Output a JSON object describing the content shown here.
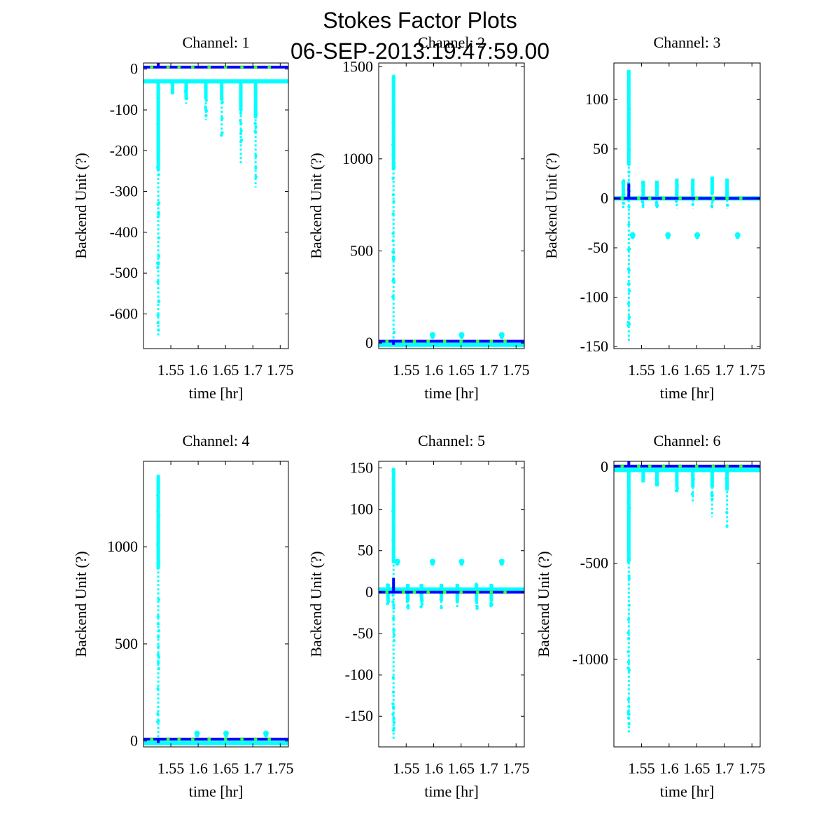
{
  "figure": {
    "title": "Stokes Factor Plots",
    "timestamp": "06-SEP-2013:19:47:59.00"
  },
  "colors": {
    "scatter": "#00ffff",
    "mean_line": "#0000ff",
    "markers": "#33ff33",
    "frame": "#000000"
  },
  "chart_data": [
    {
      "type": "scatter",
      "title": "Channel: 1",
      "xlabel": "time [hr]",
      "ylabel": "Backend Unit (?)",
      "xlim": [
        1.5,
        1.765
      ],
      "ylim": [
        -685,
        15
      ],
      "xticks": [
        1.55,
        1.6,
        1.65,
        1.7,
        1.75
      ],
      "xticklabels": [
        "1.55",
        "1.6",
        "1.65",
        "1.7",
        "1.75"
      ],
      "yticks": [
        0,
        -100,
        -200,
        -300,
        -400,
        -500,
        -600
      ],
      "yticklabels": [
        "0",
        "-100",
        "-200",
        "-300",
        "-400",
        "-500",
        "-600"
      ],
      "baseline": -30,
      "line_level": 5,
      "spike": {
        "x": 1.527,
        "value": 15
      },
      "bursts": [
        {
          "x": 1.527,
          "min": -655,
          "max": -30
        },
        {
          "x": 1.553,
          "min": -60,
          "max": -30
        },
        {
          "x": 1.578,
          "min": -85,
          "max": -30
        },
        {
          "x": 1.614,
          "min": -125,
          "max": -30
        },
        {
          "x": 1.643,
          "min": -165,
          "max": -30
        },
        {
          "x": 1.678,
          "min": -235,
          "max": -30
        },
        {
          "x": 1.705,
          "min": -290,
          "max": -30
        }
      ],
      "clusters": [],
      "markers_x": [
        1.515,
        1.545,
        1.565,
        1.59,
        1.62,
        1.65,
        1.68,
        1.705,
        1.73
      ]
    },
    {
      "type": "scatter",
      "title": "Channel: 2",
      "xlabel": "time [hr]",
      "ylabel": "Backend Unit (?)",
      "xlim": [
        1.5,
        1.765
      ],
      "ylim": [
        -30,
        1520
      ],
      "xticks": [
        1.55,
        1.6,
        1.65,
        1.7,
        1.75
      ],
      "xticklabels": [
        "1.55",
        "1.6",
        "1.65",
        "1.7",
        "1.75"
      ],
      "yticks": [
        0,
        500,
        1000,
        1500
      ],
      "yticklabels": [
        "0",
        "500",
        "1000",
        "1500"
      ],
      "baseline": -10,
      "line_level": 10,
      "spike": {
        "x": 1.527,
        "value": -10
      },
      "bursts": [
        {
          "x": 1.527,
          "min": -10,
          "max": 1450
        }
      ],
      "clusters": [
        {
          "x": 1.598,
          "value": 45
        },
        {
          "x": 1.651,
          "value": 45
        },
        {
          "x": 1.724,
          "value": 45
        }
      ],
      "markers_x": [
        1.515,
        1.545,
        1.565,
        1.59,
        1.62,
        1.65,
        1.68,
        1.705,
        1.73
      ]
    },
    {
      "type": "scatter",
      "title": "Channel: 3",
      "xlabel": "time [hr]",
      "ylabel": "Backend Unit (?)",
      "xlim": [
        1.5,
        1.765
      ],
      "ylim": [
        -152,
        137
      ],
      "xticks": [
        1.55,
        1.6,
        1.65,
        1.7,
        1.75
      ],
      "xticklabels": [
        "1.55",
        "1.6",
        "1.65",
        "1.7",
        "1.75"
      ],
      "yticks": [
        100,
        50,
        0,
        -50,
        -100,
        -150
      ],
      "yticklabels": [
        "100",
        "50",
        "0",
        "-50",
        "-100",
        "-150"
      ],
      "baseline": 0,
      "line_level": 0,
      "spike": {
        "x": 1.527,
        "value": 15
      },
      "bursts": [
        {
          "x": 1.527,
          "min": -145,
          "max": 130
        },
        {
          "x": 1.517,
          "min": -10,
          "max": 18
        },
        {
          "x": 1.553,
          "min": -10,
          "max": 18
        },
        {
          "x": 1.578,
          "min": -10,
          "max": 18
        },
        {
          "x": 1.614,
          "min": -10,
          "max": 20
        },
        {
          "x": 1.643,
          "min": -10,
          "max": 20
        },
        {
          "x": 1.678,
          "min": -10,
          "max": 22
        },
        {
          "x": 1.705,
          "min": -10,
          "max": 20
        }
      ],
      "clusters": [
        {
          "x": 1.534,
          "value": -37
        },
        {
          "x": 1.598,
          "value": -37
        },
        {
          "x": 1.651,
          "value": -37
        },
        {
          "x": 1.724,
          "value": -37
        }
      ],
      "markers_x": [
        1.515,
        1.545,
        1.565,
        1.59,
        1.62,
        1.65,
        1.68,
        1.705,
        1.73
      ]
    },
    {
      "type": "scatter",
      "title": "Channel: 4",
      "xlabel": "time [hr]",
      "ylabel": "Backend Unit (?)",
      "xlim": [
        1.5,
        1.765
      ],
      "ylim": [
        -30,
        1440
      ],
      "xticks": [
        1.55,
        1.6,
        1.65,
        1.7,
        1.75
      ],
      "xticklabels": [
        "1.55",
        "1.6",
        "1.65",
        "1.7",
        "1.75"
      ],
      "yticks": [
        0,
        500,
        1000
      ],
      "yticklabels": [
        "0",
        "500",
        "1000"
      ],
      "baseline": -10,
      "line_level": 10,
      "spike": {
        "x": 1.527,
        "value": -10
      },
      "bursts": [
        {
          "x": 1.527,
          "min": -10,
          "max": 1370
        }
      ],
      "clusters": [
        {
          "x": 1.598,
          "value": 40
        },
        {
          "x": 1.651,
          "value": 40
        },
        {
          "x": 1.724,
          "value": 40
        }
      ],
      "markers_x": [
        1.515,
        1.545,
        1.565,
        1.59,
        1.62,
        1.65,
        1.68,
        1.705,
        1.73
      ]
    },
    {
      "type": "scatter",
      "title": "Channel: 5",
      "xlabel": "time [hr]",
      "ylabel": "Backend Unit (?)",
      "xlim": [
        1.5,
        1.765
      ],
      "ylim": [
        -187,
        158
      ],
      "xticks": [
        1.55,
        1.6,
        1.65,
        1.7,
        1.75
      ],
      "xticklabels": [
        "1.55",
        "1.6",
        "1.65",
        "1.7",
        "1.75"
      ],
      "yticks": [
        150,
        100,
        50,
        0,
        -50,
        -100,
        -150
      ],
      "yticklabels": [
        "150",
        "100",
        "50",
        "0",
        "-50",
        "-100",
        "-150"
      ],
      "baseline": 3,
      "line_level": 0,
      "spike": {
        "x": 1.527,
        "value": 17
      },
      "bursts": [
        {
          "x": 1.527,
          "min": -178,
          "max": 150
        },
        {
          "x": 1.517,
          "min": -15,
          "max": 10
        },
        {
          "x": 1.553,
          "min": -20,
          "max": 10
        },
        {
          "x": 1.578,
          "min": -20,
          "max": 10
        },
        {
          "x": 1.614,
          "min": -20,
          "max": 10
        },
        {
          "x": 1.643,
          "min": -20,
          "max": 10
        },
        {
          "x": 1.678,
          "min": -20,
          "max": 10
        },
        {
          "x": 1.705,
          "min": -20,
          "max": 10
        }
      ],
      "clusters": [
        {
          "x": 1.534,
          "value": 37
        },
        {
          "x": 1.598,
          "value": 37
        },
        {
          "x": 1.651,
          "value": 37
        },
        {
          "x": 1.724,
          "value": 37
        }
      ],
      "markers_x": [
        1.515,
        1.545,
        1.565,
        1.59,
        1.62,
        1.65,
        1.68,
        1.705,
        1.73
      ]
    },
    {
      "type": "scatter",
      "title": "Channel: 6",
      "xlabel": "time [hr]",
      "ylabel": "Backend Unit (?)",
      "xlim": [
        1.5,
        1.765
      ],
      "ylim": [
        -1455,
        30
      ],
      "xticks": [
        1.55,
        1.6,
        1.65,
        1.7,
        1.75
      ],
      "xticklabels": [
        "1.55",
        "1.6",
        "1.65",
        "1.7",
        "1.75"
      ],
      "yticks": [
        0,
        -500,
        -1000
      ],
      "yticklabels": [
        "0",
        "-500",
        "-1000"
      ],
      "baseline": -15,
      "line_level": 5,
      "spike": {
        "x": 1.527,
        "value": 30
      },
      "bursts": [
        {
          "x": 1.527,
          "min": -1380,
          "max": -15
        },
        {
          "x": 1.553,
          "min": -80,
          "max": -15
        },
        {
          "x": 1.578,
          "min": -100,
          "max": -15
        },
        {
          "x": 1.614,
          "min": -130,
          "max": -15
        },
        {
          "x": 1.643,
          "min": -180,
          "max": -15
        },
        {
          "x": 1.678,
          "min": -260,
          "max": -15
        },
        {
          "x": 1.705,
          "min": -320,
          "max": -15
        }
      ],
      "clusters": [],
      "markers_x": [
        1.515,
        1.545,
        1.565,
        1.59,
        1.62,
        1.65,
        1.68,
        1.705,
        1.73
      ]
    }
  ]
}
